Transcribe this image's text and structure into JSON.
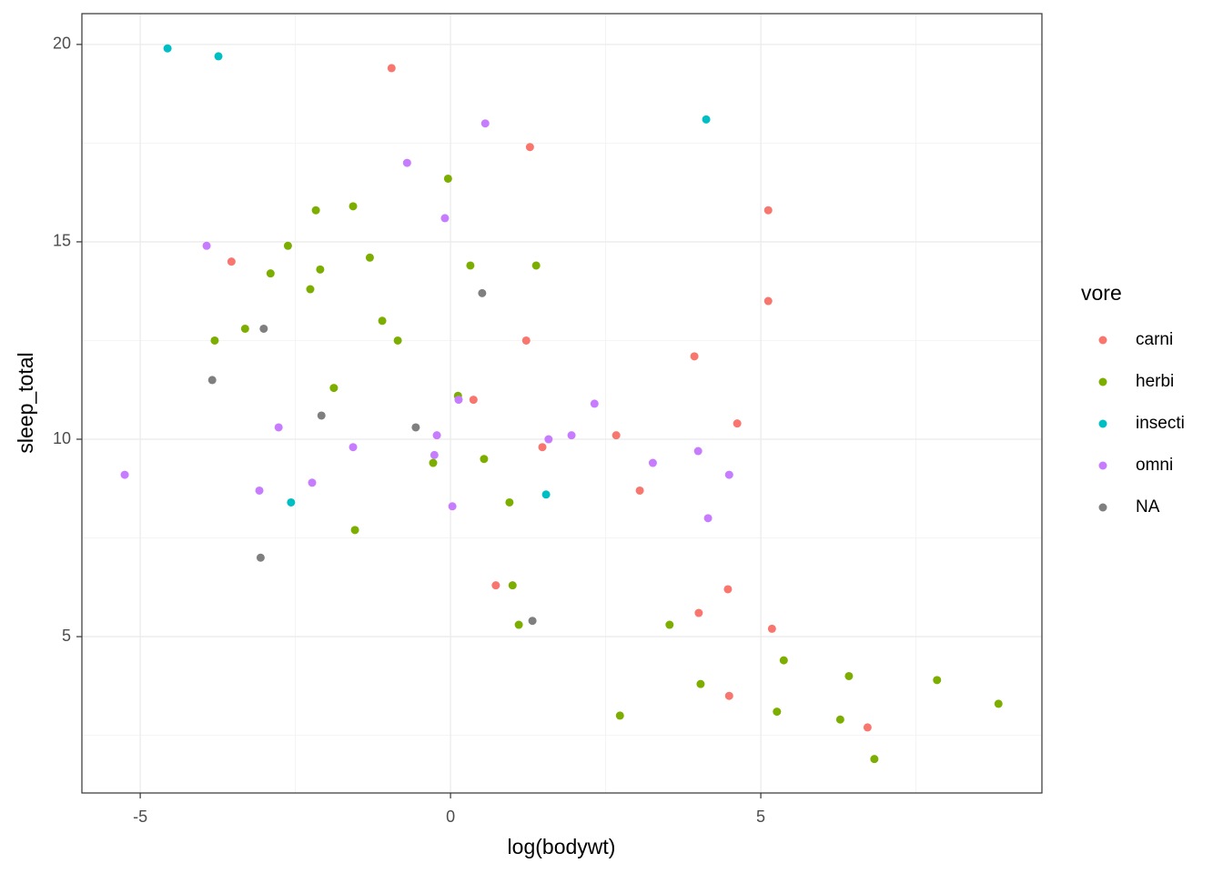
{
  "chart_data": {
    "type": "scatter",
    "x_label": "log(bodywt)",
    "y_label": "sleep_total",
    "legend_title": "vore",
    "legend_position": "right",
    "grid": true,
    "xlim": [
      -5.94,
      9.53
    ],
    "ylim": [
      1.04,
      20.78
    ],
    "xticks": [
      -5,
      0,
      5
    ],
    "yticks": [
      5,
      10,
      15,
      20
    ],
    "x_minor_ticks": [
      -2.5,
      2.5,
      7.5
    ],
    "y_minor_ticks": [
      2.5,
      7.5,
      12.5,
      17.5
    ],
    "series": [
      {
        "name": "carni",
        "color": "#F8766D",
        "x": [
          -0.95,
          1.28,
          -3.53,
          5.12,
          5.12,
          1.22,
          3.93,
          0.37,
          4.62,
          2.67,
          1.48,
          3.05,
          0.73,
          4.0,
          4.47,
          5.18,
          4.49,
          6.72
        ],
        "values": [
          19.4,
          17.4,
          14.5,
          15.8,
          13.5,
          12.5,
          12.1,
          11.0,
          10.4,
          10.1,
          9.8,
          8.7,
          6.3,
          5.6,
          6.2,
          5.2,
          3.5,
          2.7
        ]
      },
      {
        "name": "herbi",
        "color": "#7CAE00",
        "x": [
          -1.57,
          -2.17,
          -0.04,
          -2.62,
          -2.9,
          -2.1,
          -1.3,
          0.32,
          1.38,
          -2.26,
          -3.31,
          -3.8,
          -1.1,
          -0.85,
          -1.88,
          0.12,
          -0.28,
          0.54,
          0.95,
          -1.54,
          1.0,
          1.1,
          3.53,
          5.37,
          6.42,
          7.84,
          4.03,
          5.26,
          8.83,
          2.73,
          6.28,
          6.83
        ],
        "values": [
          15.9,
          15.8,
          16.6,
          14.9,
          14.2,
          14.3,
          14.6,
          14.4,
          14.4,
          13.8,
          12.8,
          12.5,
          13.0,
          12.5,
          11.3,
          11.1,
          9.4,
          9.5,
          8.4,
          7.7,
          6.3,
          5.3,
          5.3,
          4.4,
          4.0,
          3.9,
          3.8,
          3.1,
          3.3,
          3.0,
          2.9,
          1.9
        ]
      },
      {
        "name": "insecti",
        "color": "#00BFC4",
        "x": [
          -4.56,
          -3.74,
          4.12,
          -2.57,
          1.54
        ],
        "values": [
          19.9,
          19.7,
          18.1,
          8.4,
          8.6
        ]
      },
      {
        "name": "omni",
        "color": "#C77CFF",
        "x": [
          0.56,
          -0.7,
          -0.09,
          -3.93,
          2.32,
          0.13,
          -2.77,
          -0.22,
          1.95,
          1.58,
          -1.57,
          -0.26,
          3.99,
          3.26,
          4.49,
          -5.25,
          -2.23,
          -3.08,
          0.03,
          4.15
        ],
        "values": [
          18.0,
          17.0,
          15.6,
          14.9,
          10.9,
          11.0,
          10.3,
          10.1,
          10.1,
          10.0,
          9.8,
          9.6,
          9.7,
          9.4,
          9.1,
          9.1,
          8.9,
          8.7,
          8.3,
          8.0
        ]
      },
      {
        "name": "NA",
        "color": "#7F7F7F",
        "x": [
          0.51,
          -3.01,
          -3.84,
          -2.08,
          -0.56,
          -3.06,
          1.32
        ],
        "values": [
          13.7,
          12.8,
          11.5,
          10.6,
          10.3,
          7.0,
          5.4
        ]
      }
    ]
  }
}
